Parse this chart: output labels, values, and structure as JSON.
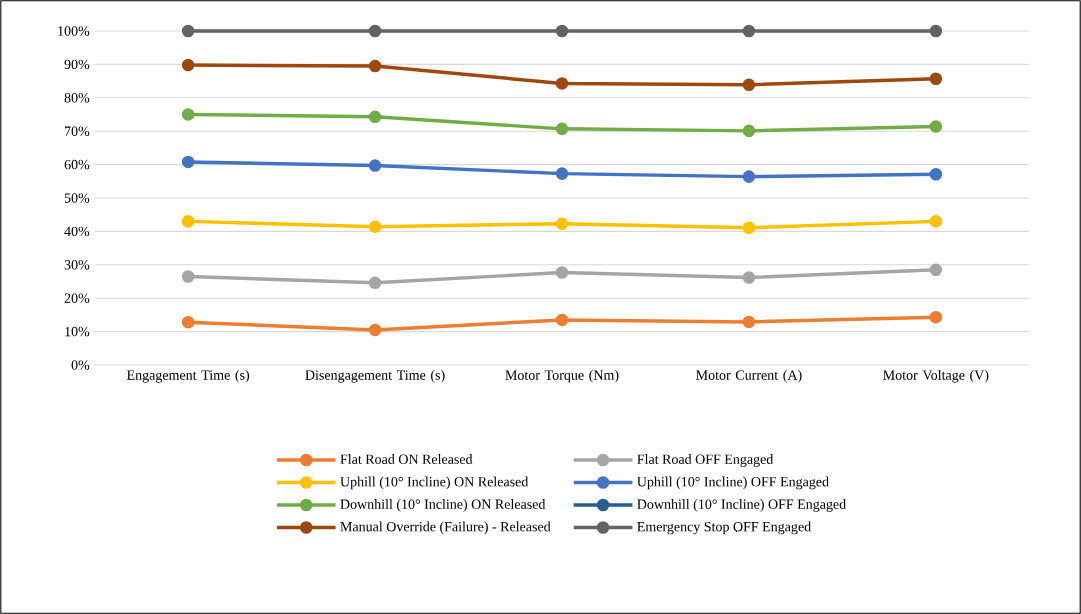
{
  "chart_data": {
    "type": "line",
    "categories": [
      "Engagement Time (s)",
      "Disengagement Time (s)",
      "Motor Torque (Nm)",
      "Motor Current (A)",
      "Motor Voltage (V)"
    ],
    "ylim": [
      0,
      100
    ],
    "yticks": [
      {
        "value": 0,
        "label": "0%"
      },
      {
        "value": 10,
        "label": "10%"
      },
      {
        "value": 20,
        "label": "20%"
      },
      {
        "value": 30,
        "label": "30%"
      },
      {
        "value": 40,
        "label": "40%"
      },
      {
        "value": 50,
        "label": "50%"
      },
      {
        "value": 60,
        "label": "60%"
      },
      {
        "value": 70,
        "label": "70%"
      },
      {
        "value": 80,
        "label": "80%"
      },
      {
        "value": 90,
        "label": "90%"
      },
      {
        "value": 100,
        "label": "100%"
      }
    ],
    "grid": "y",
    "legend": "bottom",
    "marker": "circle",
    "line_style": "solid",
    "series": [
      {
        "name": "Flat Road ON Released",
        "color": "#ed7d31",
        "values": [
          12.8,
          10.5,
          13.5,
          12.9,
          14.3
        ]
      },
      {
        "name": "Flat Road OFF Engaged",
        "color": "#a5a5a5",
        "values": [
          26.5,
          24.6,
          27.7,
          26.2,
          28.5
        ]
      },
      {
        "name": "Uphill (10° Incline) ON Released",
        "color": "#ffc000",
        "values": [
          43,
          41.4,
          42.3,
          41.1,
          43
        ]
      },
      {
        "name": "Uphill (10° Incline) OFF Engaged",
        "color": "#4472c4",
        "values": [
          60.8,
          59.7,
          57.3,
          56.4,
          57.1
        ]
      },
      {
        "name": "Downhill (10° Incline) ON Released",
        "color": "#70ad47",
        "values": [
          75,
          74.3,
          70.7,
          70.1,
          71.4
        ]
      },
      {
        "name": "Downhill (10° Incline) OFF Engaged",
        "color": "#255e91",
        "values": [
          null,
          null,
          null,
          null,
          null
        ]
      },
      {
        "name": "Manual Override (Failure) - Released",
        "color": "#9e480e",
        "values": [
          89.8,
          89.5,
          84.3,
          83.9,
          85.7
        ]
      },
      {
        "name": "Emergency Stop OFF Engaged",
        "color": "#636363",
        "values": [
          100,
          100,
          100,
          100,
          100
        ]
      }
    ]
  }
}
